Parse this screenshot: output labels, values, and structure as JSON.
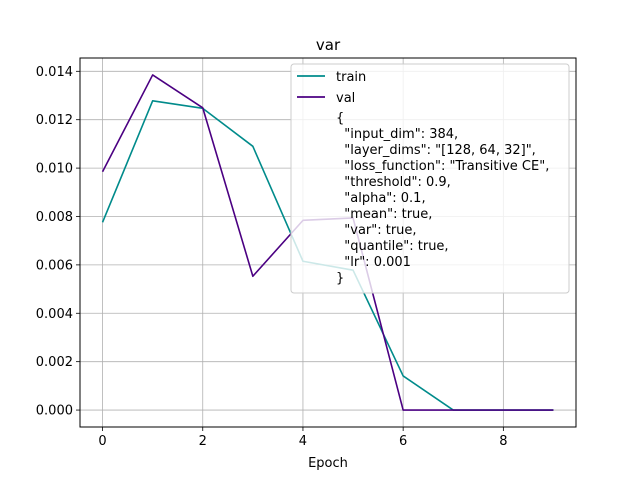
{
  "chart_data": {
    "type": "line",
    "title": "var",
    "xlabel": "Epoch",
    "ylabel": "",
    "xlim": [
      -0.45,
      9.45
    ],
    "ylim": [
      -0.0007,
      0.01455
    ],
    "grid": true,
    "x": [
      0,
      1,
      2,
      3,
      4,
      5,
      6,
      7,
      8,
      9
    ],
    "x_ticks": [
      0,
      2,
      4,
      6,
      8
    ],
    "y_ticks": [
      0.0,
      0.002,
      0.004,
      0.006,
      0.008,
      0.01,
      0.012,
      0.014
    ],
    "y_tick_labels": [
      "0.000",
      "0.002",
      "0.004",
      "0.006",
      "0.008",
      "0.010",
      "0.012",
      "0.014"
    ],
    "series": [
      {
        "name": "train",
        "color": "#008b8b",
        "values": [
          0.00776,
          0.01278,
          0.01247,
          0.0109,
          0.00615,
          0.00578,
          0.00141,
          0.0,
          0.0,
          0.0
        ]
      },
      {
        "name": "val",
        "color": "#4b0082",
        "values": [
          0.00985,
          0.01385,
          0.01249,
          0.00553,
          0.00784,
          0.00794,
          0.0,
          0.0,
          0.0,
          0.0
        ]
      }
    ],
    "legend_position": "top-right",
    "annotation_lines": [
      "{",
      "  \"input_dim\": 384,",
      "  \"layer_dims\": \"[128, 64, 32]\",",
      "  \"loss_function\": \"Transitive CE\",",
      "  \"threshold\": 0.9,",
      "  \"alpha\": 0.1,",
      "  \"mean\": true,",
      "  \"var\": true,",
      "  \"quantile\": true,",
      "  \"lr\": 0.001",
      "}"
    ]
  }
}
